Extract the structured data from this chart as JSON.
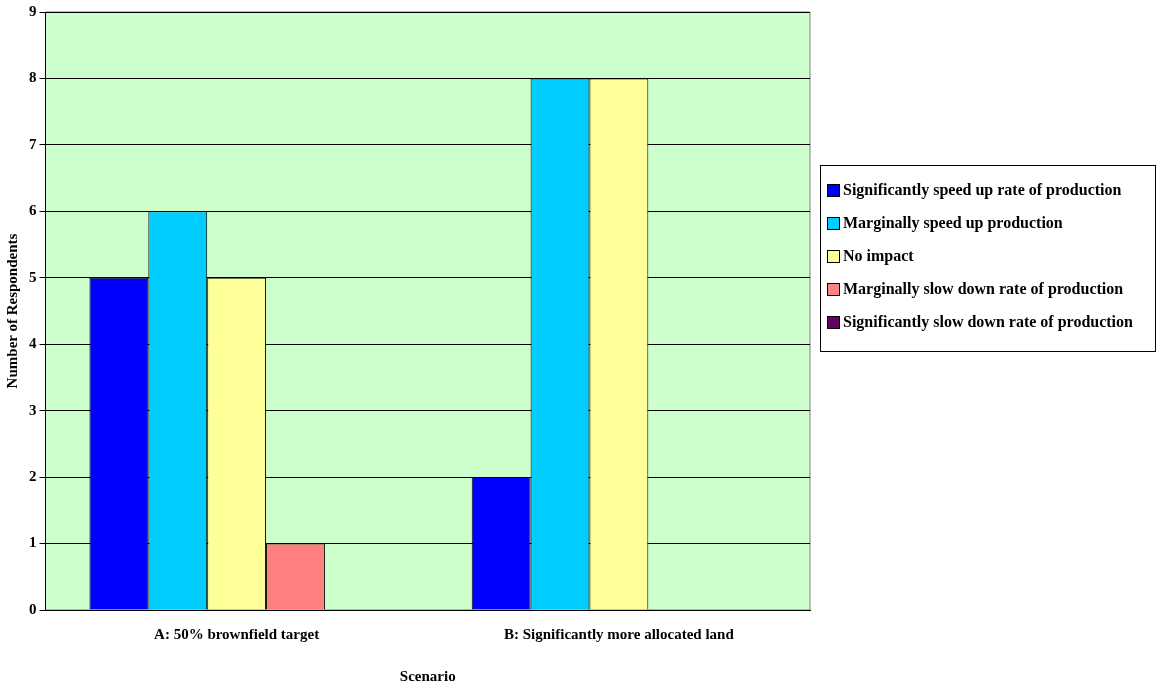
{
  "chart_data": {
    "type": "bar",
    "xlabel": "Scenario",
    "ylabel": "Number of Respondents",
    "categories": [
      "A: 50% brownfield target",
      "B: Significantly more allocated land"
    ],
    "series": [
      {
        "name": "Significantly speed up rate of production",
        "color": "#0000ff",
        "values": [
          5,
          2
        ]
      },
      {
        "name": "Marginally speed up production",
        "color": "#00ccff",
        "values": [
          6,
          8
        ]
      },
      {
        "name": "No impact",
        "color": "#ffff99",
        "values": [
          5,
          8
        ]
      },
      {
        "name": "Marginally slow down rate of production",
        "color": "#ff8080",
        "values": [
          1,
          0
        ]
      },
      {
        "name": "Significantly slow down rate of production",
        "color": "#660066",
        "values": [
          0,
          0
        ]
      }
    ],
    "ylim": [
      0,
      9
    ],
    "yticks": [
      0,
      1,
      2,
      3,
      4,
      5,
      6,
      7,
      8,
      9
    ],
    "grid": "y",
    "legend": "right"
  }
}
